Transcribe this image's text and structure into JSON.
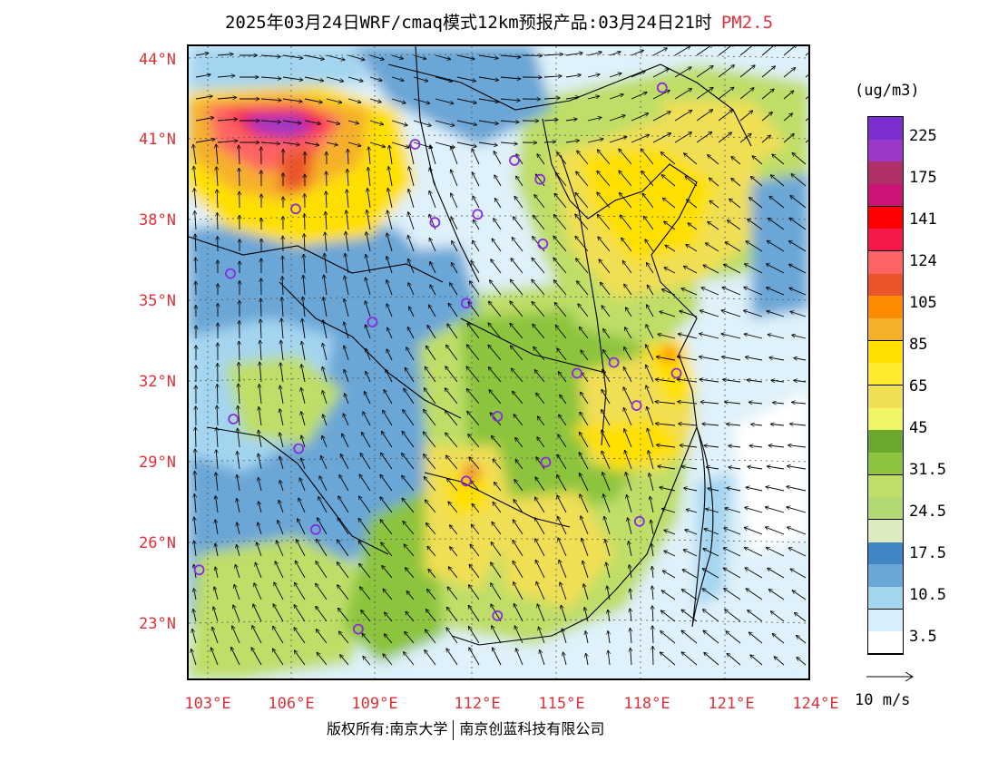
{
  "title": {
    "main": "2025年03月24日WRF/cmaq模式12km预报产品:03月24日21时",
    "pollutant": "PM2.5"
  },
  "lat_labels": [
    "44°N",
    "41°N",
    "38°N",
    "35°N",
    "32°N",
    "29°N",
    "26°N",
    "23°N"
  ],
  "lon_labels": [
    "103°E",
    "106°E",
    "109°E",
    "112°E",
    "115°E",
    "118°E",
    "121°E",
    "124°E"
  ],
  "legend": {
    "unit": "(ug/m3)",
    "labels": [
      "225",
      "175",
      "141",
      "124",
      "105",
      "85",
      "65",
      "45",
      "31.5",
      "24.5",
      "17.5",
      "10.5",
      "3.5"
    ],
    "colors": [
      "#7b2fd1",
      "#9b38c9",
      "#b0306a",
      "#cc1377",
      "#ff0000",
      "#f5184a",
      "#ff6464",
      "#ec5429",
      "#ff8a00",
      "#f5b02a",
      "#ffe000",
      "#ffeb2d",
      "#f0df55",
      "#f0f566",
      "#6aa830",
      "#8cc43e",
      "#bede68",
      "#b3d874",
      "#dcecc0",
      "#3f86c4",
      "#6aa6d6",
      "#a4d5f0",
      "#d8eefa",
      "#ffffff"
    ],
    "vector_label": "10 m/s"
  },
  "copyright": {
    "owner1": "版权所有:南京大学",
    "owner2": "南京创蓝科技有限公司"
  },
  "map": {
    "city_markers": [
      {
        "lon": 119.0,
        "lat": 42.9
      },
      {
        "lon": 110.3,
        "lat": 40.8
      },
      {
        "lon": 113.8,
        "lat": 40.2
      },
      {
        "lon": 114.7,
        "lat": 39.5
      },
      {
        "lon": 106.1,
        "lat": 38.4
      },
      {
        "lon": 111.0,
        "lat": 37.9
      },
      {
        "lon": 112.5,
        "lat": 38.2
      },
      {
        "lon": 114.8,
        "lat": 37.1
      },
      {
        "lon": 103.8,
        "lat": 36.0
      },
      {
        "lon": 112.1,
        "lat": 34.9
      },
      {
        "lon": 108.8,
        "lat": 34.2
      },
      {
        "lon": 116.0,
        "lat": 32.3
      },
      {
        "lon": 117.3,
        "lat": 32.7
      },
      {
        "lon": 119.5,
        "lat": 32.3
      },
      {
        "lon": 118.1,
        "lat": 31.1
      },
      {
        "lon": 103.9,
        "lat": 30.6
      },
      {
        "lon": 113.2,
        "lat": 30.7
      },
      {
        "lon": 106.2,
        "lat": 29.5
      },
      {
        "lon": 114.9,
        "lat": 29.0
      },
      {
        "lon": 112.1,
        "lat": 28.3
      },
      {
        "lon": 106.8,
        "lat": 26.5
      },
      {
        "lon": 118.2,
        "lat": 26.8
      },
      {
        "lon": 102.7,
        "lat": 25.0
      },
      {
        "lon": 108.3,
        "lat": 22.8
      },
      {
        "lon": 113.2,
        "lat": 23.3
      }
    ]
  }
}
